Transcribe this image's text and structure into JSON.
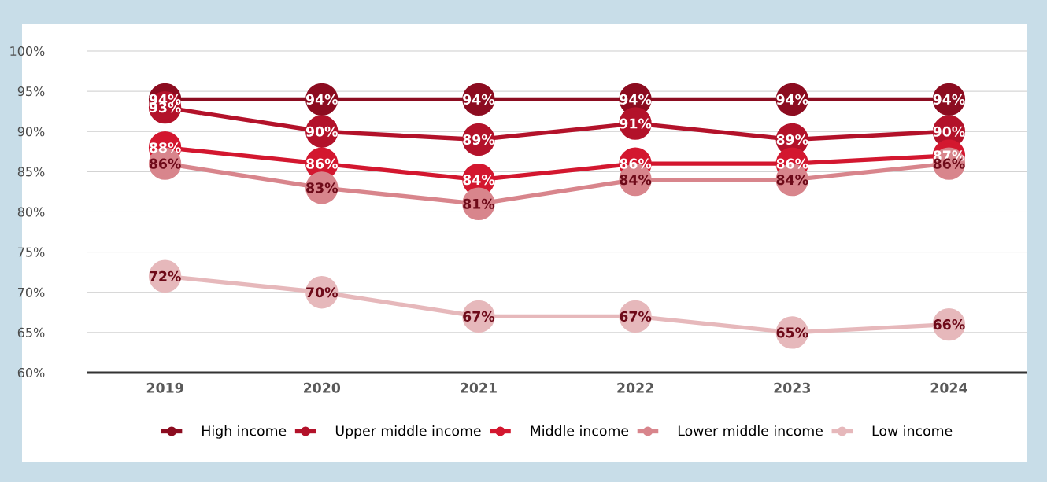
{
  "chart_data": {
    "type": "line",
    "categories": [
      "2019",
      "2020",
      "2021",
      "2022",
      "2023",
      "2024"
    ],
    "series": [
      {
        "name": "High income",
        "color": "#8c0c20",
        "values": [
          94,
          94,
          94,
          94,
          94,
          94
        ],
        "value_labels": [
          "94%",
          "94%",
          "94%",
          "94%",
          "94%",
          "94%"
        ]
      },
      {
        "name": "Upper middle income",
        "color": "#b3122a",
        "values": [
          93,
          90,
          89,
          91,
          89,
          90
        ],
        "value_labels": [
          "93%",
          "90%",
          "89%",
          "91%",
          "89%",
          "90%"
        ]
      },
      {
        "name": "Middle income",
        "color": "#d3172f",
        "values": [
          88,
          86,
          84,
          86,
          86,
          87
        ],
        "value_labels": [
          "88%",
          "86%",
          "84%",
          "86%",
          "86%",
          "87%"
        ]
      },
      {
        "name": "Lower middle income",
        "color": "#d8858c",
        "values": [
          86,
          83,
          81,
          84,
          84,
          86
        ],
        "value_labels": [
          "86%",
          "83%",
          "81%",
          "84%",
          "84%",
          "86%"
        ]
      },
      {
        "name": "Low income",
        "color": "#e6b8bb",
        "values": [
          72,
          70,
          67,
          67,
          65,
          66
        ],
        "value_labels": [
          "72%",
          "70%",
          "67%",
          "67%",
          "65%",
          "66%"
        ]
      }
    ],
    "ylim": [
      60,
      100
    ],
    "yticks": [
      {
        "value": 60,
        "label": "60%"
      },
      {
        "value": 65,
        "label": "65%"
      },
      {
        "value": 70,
        "label": "70%"
      },
      {
        "value": 75,
        "label": "75%"
      },
      {
        "value": 80,
        "label": "80%"
      },
      {
        "value": 85,
        "label": "85%"
      },
      {
        "value": 90,
        "label": "90%"
      },
      {
        "value": 95,
        "label": "95%"
      },
      {
        "value": 100,
        "label": "100%"
      }
    ],
    "grid": "y",
    "legend": "bottom",
    "marker": "circle",
    "line_style": "solid"
  }
}
